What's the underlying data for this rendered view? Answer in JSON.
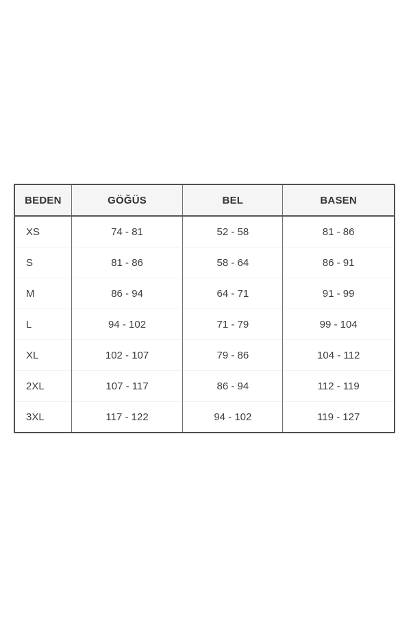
{
  "colors": {
    "page_background": "#ffffff",
    "header_background": "#f5f5f6",
    "outer_border": "#4f4f4f",
    "inner_vertical_border": "#6f6f6f",
    "faint_row_separator": "#f2f2f2",
    "text": "#3d3d3d"
  },
  "table": {
    "headers": [
      "BEDEN",
      "GÖĞÜS",
      "BEL",
      "BASEN"
    ],
    "rows": [
      [
        "XS",
        "74 - 81",
        "52 - 58",
        "81 - 86"
      ],
      [
        "S",
        "81 - 86",
        "58 - 64",
        "86 - 91"
      ],
      [
        "M",
        "86 - 94",
        "64 - 71",
        "91 - 99"
      ],
      [
        "L",
        "94 - 102",
        "71 - 79",
        "99 - 104"
      ],
      [
        "XL",
        "102 - 107",
        "79 - 86",
        "104 - 112"
      ],
      [
        "2XL",
        "107 - 117",
        "86 - 94",
        "112 - 119"
      ],
      [
        "3XL",
        "117 - 122",
        "94 - 102",
        "119 - 127"
      ]
    ]
  },
  "chart_data": {
    "type": "table",
    "title": "",
    "columns": [
      "BEDEN",
      "GÖĞÜS",
      "BEL",
      "BASEN"
    ],
    "rows": [
      {
        "BEDEN": "XS",
        "GÖĞÜS": "74 - 81",
        "BEL": "52 - 58",
        "BASEN": "81 - 86"
      },
      {
        "BEDEN": "S",
        "GÖĞÜS": "81 - 86",
        "BEL": "58 - 64",
        "BASEN": "86 - 91"
      },
      {
        "BEDEN": "M",
        "GÖĞÜS": "86 - 94",
        "BEL": "64 - 71",
        "BASEN": "91 - 99"
      },
      {
        "BEDEN": "L",
        "GÖĞÜS": "94 - 102",
        "BEL": "71 - 79",
        "BASEN": "99 - 104"
      },
      {
        "BEDEN": "XL",
        "GÖĞÜS": "102 - 107",
        "BEL": "79 - 86",
        "BASEN": "104 - 112"
      },
      {
        "BEDEN": "2XL",
        "GÖĞÜS": "107 - 117",
        "BEL": "86 - 94",
        "BASEN": "112 - 119"
      },
      {
        "BEDEN": "3XL",
        "GÖĞÜS": "117 - 122",
        "BEL": "94 - 102",
        "BASEN": "119 - 127"
      }
    ]
  }
}
